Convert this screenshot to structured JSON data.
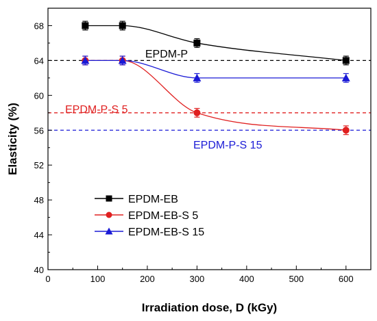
{
  "chart_data": {
    "type": "line",
    "xlabel": "Irradiation dose, D (kGy)",
    "ylabel": "Elasticity (%)",
    "xlim": [
      0,
      650
    ],
    "ylim": [
      40,
      70
    ],
    "xticks": [
      0,
      100,
      200,
      300,
      400,
      500,
      600
    ],
    "yticks": [
      40,
      44,
      48,
      52,
      56,
      60,
      64,
      68
    ],
    "x": [
      75,
      150,
      300,
      600
    ],
    "series": [
      {
        "name": "EPDM-EB",
        "values": [
          68,
          68,
          66,
          64
        ],
        "error": 0.5,
        "color": "#000000",
        "marker": "square"
      },
      {
        "name": "EPDM-EB-S 5",
        "values": [
          64,
          64,
          58,
          56
        ],
        "error": 0.5,
        "color": "#e02020",
        "marker": "circle"
      },
      {
        "name": "EPDM-EB-S 15",
        "values": [
          64,
          64,
          62,
          62
        ],
        "error": 0.5,
        "color": "#1a1ad6",
        "marker": "triangle"
      }
    ],
    "reference_lines": [
      {
        "label": "EPDM-P",
        "y": 64,
        "color": "#000000"
      },
      {
        "label": "EPDM-P-S 5",
        "y": 58,
        "color": "#e02020"
      },
      {
        "label": "EPDM-P-S 15",
        "y": 56,
        "color": "#1a1ad6"
      }
    ],
    "legend_position": "lower-left",
    "grid": false
  }
}
